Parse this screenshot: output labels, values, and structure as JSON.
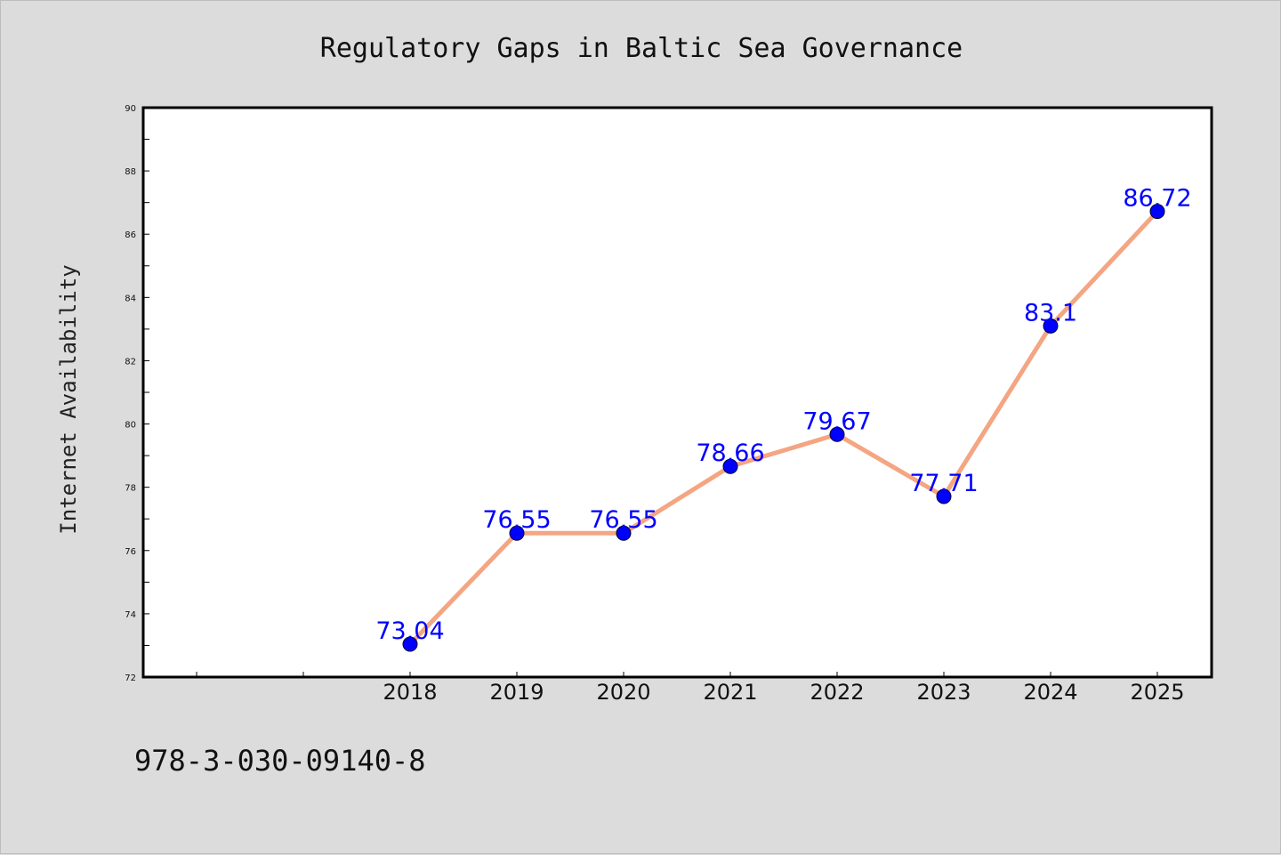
{
  "chart_data": {
    "type": "line",
    "title": "Regulatory Gaps in Baltic Sea Governance",
    "xlabel": "",
    "ylabel": "Internet Availability",
    "categories": [
      "2018",
      "2019",
      "2020",
      "2021",
      "2022",
      "2023",
      "2024",
      "2025"
    ],
    "values": [
      73.04,
      76.55,
      76.55,
      78.66,
      79.67,
      77.71,
      83.1,
      86.72
    ],
    "value_labels": [
      "73.04",
      "76.55",
      "76.55",
      "78.66",
      "79.67",
      "77.71",
      "83.1",
      "86.72"
    ],
    "ylim": [
      72,
      90
    ],
    "yticks": [
      "72",
      "74",
      "76",
      "78",
      "80",
      "82",
      "84",
      "86",
      "88",
      "90"
    ],
    "grid": false,
    "legend": "none",
    "line_color": "#f4a582",
    "marker_color": "#0000ff",
    "label_color": "#0000ff"
  },
  "footnote": "978-3-030-09140-8"
}
